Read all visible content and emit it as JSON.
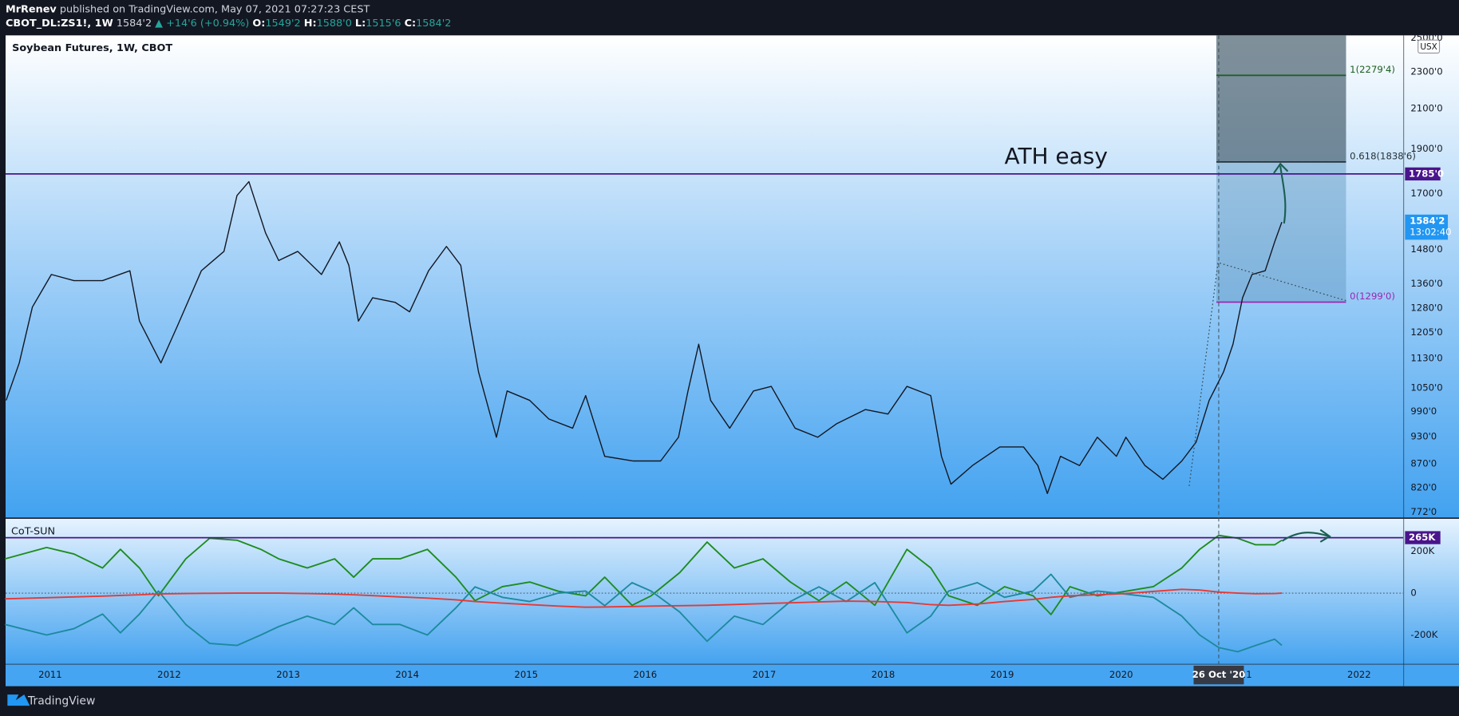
{
  "header": {
    "author": "MrRenev",
    "published": "published on TradingView.com, May 07, 2021 07:27:23 CEST",
    "symbol": "CBOT_DL:ZS1!, 1W",
    "last": "1584'2",
    "change": "▲ +14'6 (+0.94%)",
    "o_label": "O:",
    "o": "1549'2",
    "h_label": "H:",
    "h": "1588'0",
    "l_label": "L:",
    "l": "1515'6",
    "c_label": "C:",
    "c": "1584'2"
  },
  "chart_data": [
    {
      "type": "line",
      "title": "Soybean Futures, 1W, CBOT",
      "currency": "USX",
      "log_scale": true,
      "color": "#131722",
      "x": [
        2010.63,
        2010.74,
        2010.85,
        2011.01,
        2011.2,
        2011.44,
        2011.67,
        2011.75,
        2011.93,
        2012.07,
        2012.27,
        2012.46,
        2012.57,
        2012.67,
        2012.81,
        2012.92,
        2013.08,
        2013.28,
        2013.43,
        2013.51,
        2013.59,
        2013.71,
        2013.9,
        2014.02,
        2014.18,
        2014.33,
        2014.45,
        2014.53,
        2014.6,
        2014.75,
        2014.84,
        2015.03,
        2015.19,
        2015.39,
        2015.5,
        2015.66,
        2015.9,
        2016.13,
        2016.28,
        2016.36,
        2016.45,
        2016.55,
        2016.71,
        2016.91,
        2017.06,
        2017.26,
        2017.45,
        2017.61,
        2017.85,
        2018.04,
        2018.2,
        2018.4,
        2018.49,
        2018.57,
        2018.75,
        2018.98,
        2019.18,
        2019.3,
        2019.38,
        2019.49,
        2019.65,
        2019.8,
        2019.96,
        2020.04,
        2020.2,
        2020.35,
        2020.51,
        2020.63,
        2020.74,
        2020.86,
        2020.94,
        2021.02,
        2021.1,
        2021.21,
        2021.29,
        2021.35
      ],
      "values": [
        1018,
        1117,
        1283,
        1391,
        1370,
        1370,
        1404,
        1239,
        1117,
        1225,
        1404,
        1473,
        1692,
        1751,
        1542,
        1440,
        1473,
        1391,
        1508,
        1423,
        1239,
        1313,
        1298,
        1268,
        1404,
        1491,
        1423,
        1225,
        1092,
        929,
        1042,
        1018,
        972,
        950,
        1030,
        886,
        876,
        876,
        929,
        1042,
        1170,
        1018,
        950,
        1042,
        1054,
        950,
        929,
        961,
        995,
        984,
        1054,
        1030,
        886,
        827,
        866,
        907,
        907,
        866,
        808,
        886,
        866,
        929,
        886,
        929,
        866,
        837,
        876,
        918,
        1018,
        1092,
        1170,
        1313,
        1391,
        1404,
        1508,
        1584.25
      ],
      "xlim": [
        2010.625,
        2022.37
      ],
      "xticks": [
        2011,
        2012,
        2013,
        2014,
        2015,
        2016,
        2017,
        2018,
        2019,
        2020,
        2021,
        2022
      ],
      "ylim": [
        761,
        2517
      ],
      "yticks": [
        {
          "value": 772,
          "label": "772'0"
        },
        {
          "value": 820,
          "label": "820'0"
        },
        {
          "value": 870,
          "label": "870'0"
        },
        {
          "value": 930,
          "label": "930'0"
        },
        {
          "value": 990,
          "label": "990'0"
        },
        {
          "value": 1050,
          "label": "1050'0"
        },
        {
          "value": 1130,
          "label": "1130'0"
        },
        {
          "value": 1205,
          "label": "1205'0"
        },
        {
          "value": 1280,
          "label": "1280'0"
        },
        {
          "value": 1360,
          "label": "1360'0"
        },
        {
          "value": 1480,
          "label": "1480'0"
        },
        {
          "value": 1700,
          "label": "1700'0"
        },
        {
          "value": 1900,
          "label": "1900'0"
        },
        {
          "value": 2100,
          "label": "2100'0"
        },
        {
          "value": 2300,
          "label": "2300'0"
        },
        {
          "value": 2500,
          "label": "2500'0"
        }
      ],
      "hlines": [
        {
          "value": 1785,
          "label": "1785'0",
          "color": "#4a148c"
        }
      ],
      "last_price": {
        "value": 1584.25,
        "label": "1584'2",
        "countdown": "13:02:40",
        "color": "#2196f3"
      },
      "annotation": "ATH easy",
      "fib": {
        "x": [
          2020.8,
          2021.89
        ],
        "levels": [
          {
            "value": 1299,
            "label": "0(1299'0)",
            "color": "#9c27b0"
          },
          {
            "value": 1838.75,
            "label": "0.618(1838'6)",
            "color": "#263238"
          },
          {
            "value": 2279.5,
            "label": "1(2279'4)",
            "color": "#1b5e20"
          }
        ]
      },
      "cursor": {
        "value": 2020.82,
        "label": "26 Oct '20"
      }
    },
    {
      "type": "line",
      "title": "CoT-SUN",
      "x": [
        2010.62,
        2010.97,
        2011.2,
        2011.44,
        2011.59,
        2011.75,
        2011.91,
        2012.14,
        2012.34,
        2012.57,
        2012.77,
        2012.92,
        2013.16,
        2013.39,
        2013.55,
        2013.71,
        2013.94,
        2014.17,
        2014.41,
        2014.57,
        2014.8,
        2015.03,
        2015.27,
        2015.5,
        2015.66,
        2015.89,
        2016.05,
        2016.29,
        2016.52,
        2016.75,
        2016.99,
        2017.22,
        2017.46,
        2017.69,
        2017.93,
        2018.2,
        2018.4,
        2018.55,
        2018.79,
        2019.02,
        2019.26,
        2019.41,
        2019.57,
        2019.8,
        2020.04,
        2020.27,
        2020.51,
        2020.66,
        2020.82,
        2020.98,
        2021.13,
        2021.29,
        2021.35
      ],
      "series": [
        {
          "color": "#1e8c1e",
          "values": [
            164000,
            218000,
            187000,
            120000,
            209000,
            120000,
            -13000,
            164000,
            262000,
            253000,
            209000,
            164000,
            120000,
            164000,
            76000,
            164000,
            164000,
            209000,
            76000,
            -36000,
            31000,
            53000,
            9000,
            -13000,
            76000,
            -58000,
            -13000,
            98000,
            244000,
            120000,
            164000,
            53000,
            -36000,
            53000,
            -58000,
            209000,
            120000,
            -13000,
            -58000,
            31000,
            -13000,
            -102000,
            31000,
            -13000,
            9000,
            31000,
            120000,
            209000,
            276000,
            262000,
            231000,
            231000,
            253000
          ]
        },
        {
          "color": "#1d8a9e",
          "values": [
            -150000,
            -200000,
            -170000,
            -100000,
            -190000,
            -100000,
            10000,
            -150000,
            -240000,
            -250000,
            -200000,
            -160000,
            -110000,
            -150000,
            -70000,
            -150000,
            -150000,
            -200000,
            -70000,
            30000,
            -20000,
            -40000,
            0,
            10000,
            -60000,
            50000,
            10000,
            -90000,
            -230000,
            -110000,
            -150000,
            -40000,
            30000,
            -40000,
            50000,
            -190000,
            -110000,
            10000,
            50000,
            -20000,
            10000,
            90000,
            -20000,
            10000,
            -5000,
            -20000,
            -110000,
            -200000,
            -260000,
            -280000,
            -250000,
            -220000,
            -250000
          ]
        },
        {
          "color": "#e53935",
          "values": [
            -27000,
            -22000,
            -18000,
            -14000,
            -11000,
            -8000,
            -4000,
            -2000,
            -1000,
            0,
            0,
            0,
            -2000,
            -5000,
            -8000,
            -12000,
            -18000,
            -24000,
            -32000,
            -40000,
            -48000,
            -55000,
            -62000,
            -67000,
            -66000,
            -64000,
            -62000,
            -60000,
            -58000,
            -54000,
            -50000,
            -46000,
            -42000,
            -38000,
            -40000,
            -45000,
            -55000,
            -58000,
            -52000,
            -40000,
            -30000,
            -20000,
            -13000,
            -8000,
            -2000,
            8000,
            18000,
            15000,
            5000,
            0,
            -3000,
            -2000,
            0
          ]
        }
      ],
      "ylim": [
        -338000,
        356000
      ],
      "yticks": [
        {
          "value": 200000,
          "label": "200K"
        },
        0,
        {
          "value": -200000,
          "label": "-200K"
        }
      ],
      "hlines": [
        {
          "value": 265000,
          "label": "265K",
          "color": "#4a148c"
        }
      ]
    }
  ],
  "footer": {
    "brand": "TradingView"
  }
}
